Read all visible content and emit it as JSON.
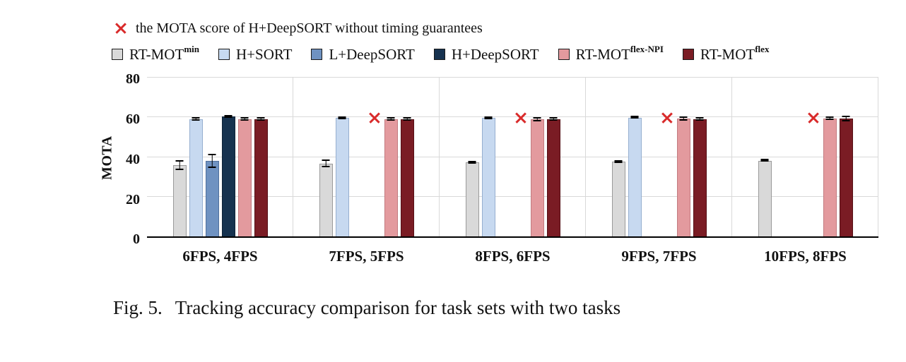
{
  "figure": {
    "caption_label": "Fig. 5.",
    "caption_text": "Tracking accuracy comparison for task sets with two tasks"
  },
  "chart_data": {
    "type": "bar",
    "title": "",
    "xlabel": "",
    "ylabel": "MOTA",
    "ylim": [
      0,
      80
    ],
    "yticks": [
      0,
      20,
      40,
      60,
      80
    ],
    "grid": "horizontal",
    "legend_position": "top",
    "categories": [
      "6FPS, 4FPS",
      "7FPS, 5FPS",
      "8FPS, 6FPS",
      "9FPS, 7FPS",
      "10FPS, 8FPS"
    ],
    "series": [
      {
        "key": "rt-mot-min",
        "name": "RT-MOT",
        "sup": "min",
        "color": "#d9d9d9",
        "border": "#9a9a9a",
        "values": [
          36.0,
          36.7,
          37.3,
          37.6,
          38.2
        ],
        "errors": [
          2.5,
          2.0,
          0.8,
          0.5,
          0.5
        ]
      },
      {
        "key": "h-sort",
        "name": "H+SORT",
        "sup": "",
        "color": "#c7d9f0",
        "border": "#96afd0",
        "values": [
          59.2,
          59.6,
          59.6,
          59.7,
          null
        ],
        "errors": [
          0.8,
          0.5,
          0.5,
          0.4,
          null
        ]
      },
      {
        "key": "l-deepsort",
        "name": "L+DeepSORT",
        "sup": "",
        "color": "#6f92c1",
        "border": "#4f6f9d",
        "values": [
          38.1,
          null,
          null,
          null,
          null
        ],
        "errors": [
          3.5,
          null,
          null,
          null,
          null
        ]
      },
      {
        "key": "h-deepsort",
        "name": "H+DeepSORT",
        "sup": "",
        "color": "#16324f",
        "border": "#0e2236",
        "values": [
          60.3,
          null,
          null,
          null,
          null
        ],
        "errors": [
          0.5,
          null,
          null,
          null,
          null
        ]
      },
      {
        "key": "rt-mot-flex-npi",
        "name": "RT-MOT",
        "sup": "flex-NPI",
        "color": "#e39a9e",
        "border": "#c27b80",
        "values": [
          59.2,
          59.2,
          59.0,
          59.4,
          59.5
        ],
        "errors": [
          1.0,
          1.0,
          1.2,
          1.0,
          0.9
        ]
      },
      {
        "key": "rt-mot-flex",
        "name": "RT-MOT",
        "sup": "flex",
        "color": "#7a1c24",
        "border": "#551016",
        "values": [
          59.2,
          59.2,
          59.2,
          59.2,
          59.3
        ],
        "errors": [
          1.0,
          0.8,
          1.0,
          1.0,
          1.5
        ]
      }
    ],
    "x_markers": {
      "label": "the MOTA score of H+DeepSORT without timing guarantees",
      "color": "#d92b2b",
      "slot_series": "h-deepsort",
      "values": [
        null,
        59.8,
        59.8,
        59.8,
        59.8
      ]
    }
  }
}
